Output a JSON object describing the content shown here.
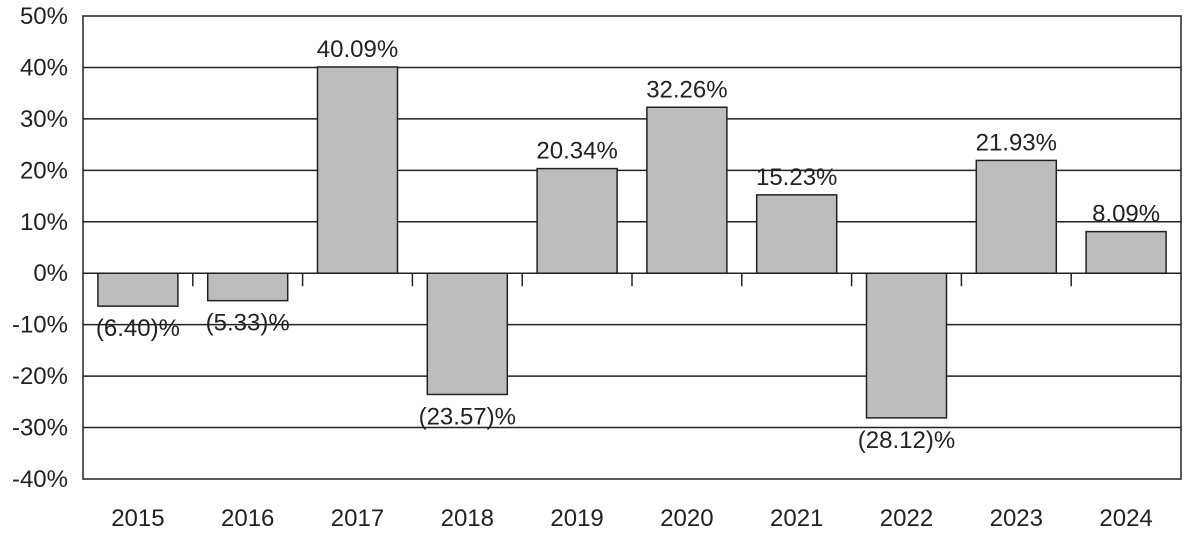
{
  "chart_data": {
    "type": "bar",
    "categories": [
      "2015",
      "2016",
      "2017",
      "2018",
      "2019",
      "2020",
      "2021",
      "2022",
      "2023",
      "2024"
    ],
    "values": [
      -6.4,
      -5.33,
      40.09,
      -23.57,
      20.34,
      32.26,
      15.23,
      -28.12,
      21.93,
      8.09
    ],
    "data_labels": [
      "(6.40)%",
      "(5.33)%",
      "40.09%",
      "(23.57)%",
      "20.34%",
      "32.26%",
      "15.23%",
      "(28.12)%",
      "21.93%",
      "8.09%"
    ],
    "y_ticks": [
      "50%",
      "40%",
      "30%",
      "20%",
      "10%",
      "0%",
      "-10%",
      "-20%",
      "-30%",
      "-40%"
    ],
    "ylim": [
      -40,
      50
    ],
    "grid": true,
    "bar_color": "#bcbdbf",
    "bar_edge_color": "#222222",
    "title": "",
    "xlabel": "",
    "ylabel": ""
  }
}
